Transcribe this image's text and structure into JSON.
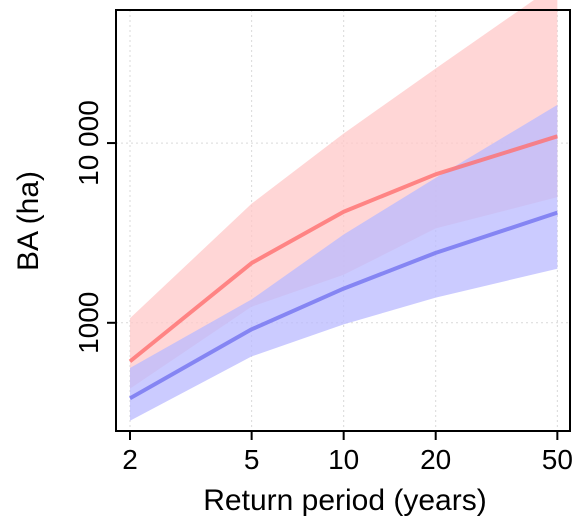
{
  "chart_data": {
    "type": "line",
    "title": "",
    "xlabel": "Return period (years)",
    "ylabel": "BA (ha)",
    "xscale": "log",
    "yscale": "log",
    "xlim": [
      1.8,
      55
    ],
    "ylim": [
      250,
      55000
    ],
    "grid": true,
    "legend": "none",
    "x_ticks": [
      {
        "value": 2,
        "label": "2"
      },
      {
        "value": 5,
        "label": "5"
      },
      {
        "value": 10,
        "label": "10"
      },
      {
        "value": 20,
        "label": "20"
      },
      {
        "value": 50,
        "label": "50"
      }
    ],
    "y_ticks": [
      {
        "value": 1000,
        "label": "1000"
      },
      {
        "value": 10000,
        "label": "10 000"
      }
    ],
    "x": [
      2,
      5,
      10,
      20,
      50
    ],
    "series": [
      {
        "color": "#ff6f6f",
        "band_color": "#ffc8c8",
        "values": [
          610,
          2150,
          4150,
          6700,
          10900
        ],
        "lower": [
          430,
          1230,
          1850,
          3350,
          5000
        ],
        "upper": [
          1060,
          4600,
          11300,
          26000,
          77000
        ]
      },
      {
        "color": "#7373f0",
        "band_color": "#b9b9ff",
        "values": [
          380,
          920,
          1550,
          2450,
          4100
        ],
        "lower": [
          285,
          650,
          980,
          1380,
          2000
        ],
        "upper": [
          560,
          1350,
          3100,
          6400,
          16300
        ]
      }
    ]
  }
}
